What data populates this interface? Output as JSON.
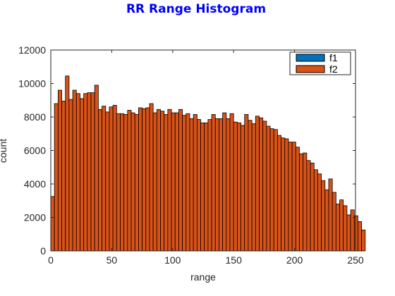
{
  "chart_data": {
    "type": "bar",
    "title": "RR Range Histogram",
    "xlabel": "range",
    "ylabel": "count",
    "xlim": [
      0,
      250
    ],
    "ylim": [
      0,
      12000
    ],
    "xticks": [
      "0",
      "50",
      "100",
      "150",
      "200",
      "250"
    ],
    "yticks": [
      "0",
      "2000",
      "4000",
      "6000",
      "8000",
      "10000",
      "12000"
    ],
    "bin_width": 3,
    "bin_start": 0,
    "grid": false,
    "legend_position": "top-right",
    "series": [
      {
        "name": "f1",
        "color": "#0072bd",
        "values": []
      },
      {
        "name": "f2",
        "color": "#d95319",
        "values": [
          3250,
          8800,
          9600,
          8950,
          10450,
          9050,
          9600,
          9400,
          9100,
          9400,
          9450,
          9450,
          9900,
          8450,
          8650,
          8300,
          8600,
          8700,
          8200,
          8200,
          8150,
          8400,
          8250,
          8150,
          8550,
          8500,
          8550,
          8800,
          8250,
          8450,
          8350,
          8150,
          8450,
          8250,
          8250,
          8450,
          8100,
          8200,
          7900,
          8150,
          7850,
          7650,
          7650,
          7850,
          8150,
          7900,
          7900,
          8250,
          7900,
          8200,
          7700,
          7650,
          7500,
          8150,
          7800,
          7600,
          8050,
          7950,
          7750,
          7450,
          7300,
          7250,
          6900,
          6750,
          6700,
          6500,
          6500,
          6200,
          5800,
          5850,
          5400,
          5250,
          4850,
          4600,
          4200,
          3650,
          4300,
          3500,
          2800,
          3050,
          2700,
          2150,
          2450,
          2100,
          1750,
          1250
        ]
      }
    ]
  }
}
